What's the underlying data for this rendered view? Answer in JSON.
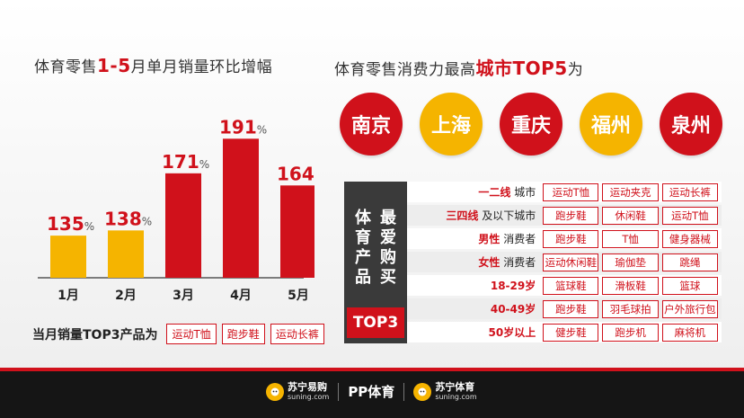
{
  "left_title": {
    "prefix": "体育零售",
    "highlight": "1-5",
    "suffix": "月单月销量环比增幅"
  },
  "right_title": {
    "prefix": "体育零售消费力最高",
    "highlight": "城市TOP5",
    "suffix": "为"
  },
  "chart_data": {
    "type": "bar",
    "title": "体育零售1-5月单月销量环比增幅",
    "categories": [
      "1月",
      "2月",
      "3月",
      "4月",
      "5月"
    ],
    "values": [
      135,
      138,
      171,
      191,
      164
    ],
    "value_labels": [
      "135",
      "138",
      "171",
      "191",
      "164"
    ],
    "unit": "%",
    "bar_colors": [
      "#f5b400",
      "#f5b400",
      "#d0111b",
      "#d0111b",
      "#d0111b"
    ],
    "ylim": [
      0,
      200
    ],
    "grid": false
  },
  "left_top3": {
    "label": "当月销量TOP3产品为",
    "tags": [
      "运动T恤",
      "跑步鞋",
      "运动长裤"
    ]
  },
  "cities": [
    {
      "name": "南京",
      "color": "#d0111b"
    },
    {
      "name": "上海",
      "color": "#f5b400"
    },
    {
      "name": "重庆",
      "color": "#d0111b"
    },
    {
      "name": "福州",
      "color": "#f5b400"
    },
    {
      "name": "泉州",
      "color": "#d0111b"
    }
  ],
  "matrix": {
    "side_col1": [
      "体",
      "育",
      "产",
      "品"
    ],
    "side_col2": [
      "最",
      "爱",
      "购",
      "买"
    ],
    "top3_label": "TOP3",
    "rows": [
      {
        "key": "一二线",
        "rest": "城市",
        "tags": [
          "运动T恤",
          "运动夹克",
          "运动长裤"
        ]
      },
      {
        "key": "三四线",
        "rest": "及以下城市",
        "tags": [
          "跑步鞋",
          "休闲鞋",
          "运动T恤"
        ]
      },
      {
        "key": "男性",
        "rest": "消费者",
        "tags": [
          "跑步鞋",
          "T恤",
          "健身器械"
        ]
      },
      {
        "key": "女性",
        "rest": "消费者",
        "tags": [
          "运动休闲鞋",
          "瑜伽垫",
          "跳绳"
        ]
      },
      {
        "key": "",
        "rest": "18-29岁",
        "tags": [
          "篮球鞋",
          "滑板鞋",
          "篮球"
        ]
      },
      {
        "key": "",
        "rest": "40-49岁",
        "tags": [
          "跑步鞋",
          "羽毛球拍",
          "户外旅行包"
        ]
      },
      {
        "key": "",
        "rest": "50岁以上",
        "tags": [
          "健步鞋",
          "跑步机",
          "麻将机"
        ]
      }
    ]
  },
  "footer": {
    "logo1_name": "苏宁易购",
    "logo1_sub": "suning.com",
    "logo2_text": "PP体育",
    "logo3_name": "苏宁体育",
    "logo3_sub": "suning.com",
    "lion_icon": "lion-icon",
    "accent": "#d0111b"
  }
}
